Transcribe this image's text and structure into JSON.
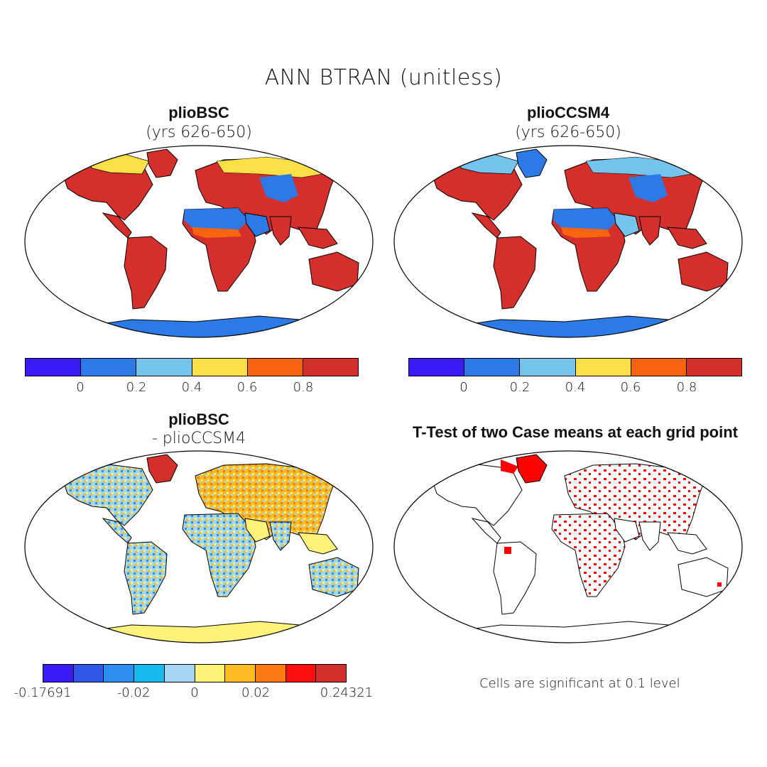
{
  "main_title": "ANN BTRAN (unitless)",
  "panels": {
    "top_left": {
      "title": "plioBSC",
      "subtitle": "(yrs 626-650)"
    },
    "top_right": {
      "title": "plioCCSM4",
      "subtitle": "(yrs 626-650)"
    },
    "bottom_left": {
      "title": "plioBSC",
      "subtitle": "- plioCCSM4"
    },
    "bottom_right": {
      "title": "T-Test of two Case means at each grid point"
    }
  },
  "colorbar_abs": {
    "colors": [
      "#3a1cf4",
      "#2b7ae6",
      "#76c4ee",
      "#fde048",
      "#f9650f",
      "#d42f2b"
    ],
    "ticks": [
      "0",
      "0.2",
      "0.4",
      "0.6",
      "0.8"
    ]
  },
  "colorbar_diff": {
    "colors": [
      "#3a1cf4",
      "#3057e8",
      "#2b8ef0",
      "#18b8f0",
      "#a3d6f0",
      "#fff27a",
      "#fdbb21",
      "#fb7b12",
      "#fb0e0e",
      "#d42f2b"
    ],
    "ticks": [
      "-0.17691",
      "-0.02",
      "0",
      "0.02",
      "0.24321"
    ]
  },
  "significance_note": "Cells are significant at 0.1 level",
  "map_colors": {
    "land_default": "#d42f2b",
    "land_dry": "#f9650f",
    "desert": "#2b7ae6",
    "arctic": "#76c4ee",
    "boreal": "#fde048",
    "antarctica": "#2b7ae6",
    "diff_land": "#a3d6f0",
    "diff_antarctica": "#fff27a",
    "ttest_dot": "#ff0000"
  }
}
